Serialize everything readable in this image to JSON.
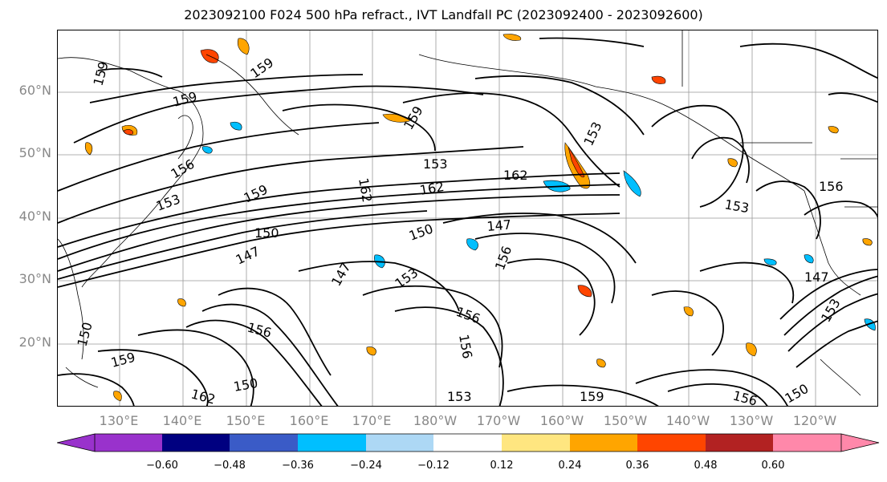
{
  "title": "2023092100 F024 500 hPa refract., IVT Landfall PC (2023092400 - 2023092600)",
  "map": {
    "lat_labels": [
      "60°N",
      "50°N",
      "40°N",
      "30°N",
      "20°N"
    ],
    "lon_labels": [
      "130°E",
      "140°E",
      "150°E",
      "160°E",
      "170°E",
      "180°W",
      "170°W",
      "160°W",
      "150°W",
      "140°W",
      "130°W",
      "120°W"
    ],
    "contour_labels": [
      "159",
      "159",
      "159",
      "159",
      "153",
      "153",
      "162",
      "162",
      "153",
      "156",
      "156",
      "153",
      "159",
      "162",
      "150",
      "147",
      "147",
      "150",
      "153",
      "156",
      "156",
      "156",
      "159",
      "150",
      "150",
      "162",
      "147",
      "153",
      "150",
      "156",
      "159",
      "156",
      "153",
      "147"
    ],
    "grid": true,
    "coastlines": true
  },
  "colorbar": {
    "ticks": [
      "−0.60",
      "−0.48",
      "−0.36",
      "−0.24",
      "−0.12",
      "0.12",
      "0.24",
      "0.36",
      "0.48",
      "0.60"
    ],
    "colors": [
      "#9932cc",
      "#000080",
      "#3a5bc7",
      "#00bfff",
      "#add8f5",
      "#ffffff",
      "#ffe680",
      "#ffa500",
      "#ff4500",
      "#b22222",
      "#ff88aa"
    ],
    "extend": "both"
  }
}
